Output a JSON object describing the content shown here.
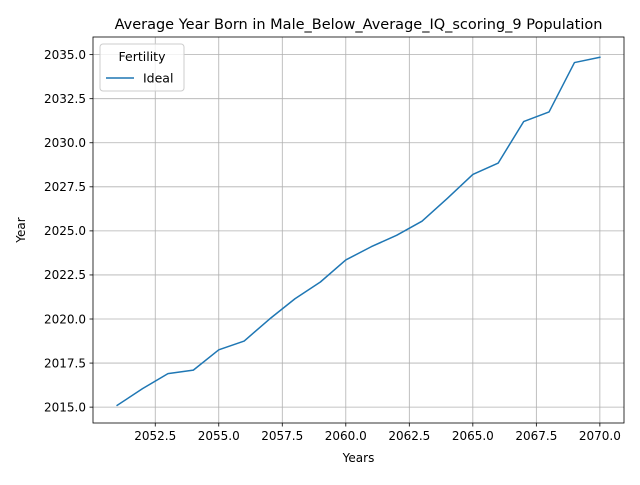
{
  "chart_data": {
    "type": "line",
    "title": "Average Year Born in Male_Below_Average_IQ_scoring_9 Population",
    "xlabel": "Years",
    "ylabel": "Year",
    "xlim": [
      2050.05,
      2070.95
    ],
    "ylim": [
      2014.1,
      2036.0
    ],
    "x_ticks": [
      "2052.5",
      "2055.0",
      "2057.5",
      "2060.0",
      "2062.5",
      "2065.0",
      "2067.5",
      "2070.0"
    ],
    "y_ticks": [
      "2015.0",
      "2017.5",
      "2020.0",
      "2022.5",
      "2025.0",
      "2027.5",
      "2030.0",
      "2032.5",
      "2035.0"
    ],
    "grid": true,
    "legend": {
      "title": "Fertility",
      "placement": "top-left"
    },
    "series": [
      {
        "name": "Ideal",
        "color": "#1f77b4",
        "x": [
          2051,
          2052,
          2053,
          2054,
          2055,
          2056,
          2057,
          2058,
          2059,
          2060,
          2061,
          2062,
          2063,
          2064,
          2065,
          2066,
          2067,
          2068,
          2069,
          2070
        ],
        "y": [
          2015.1,
          2016.05,
          2016.9,
          2017.1,
          2018.25,
          2018.75,
          2020.0,
          2021.15,
          2022.1,
          2023.35,
          2024.1,
          2024.75,
          2025.55,
          2026.85,
          2028.2,
          2028.85,
          2031.2,
          2031.75,
          2034.55,
          2034.85
        ]
      }
    ]
  }
}
